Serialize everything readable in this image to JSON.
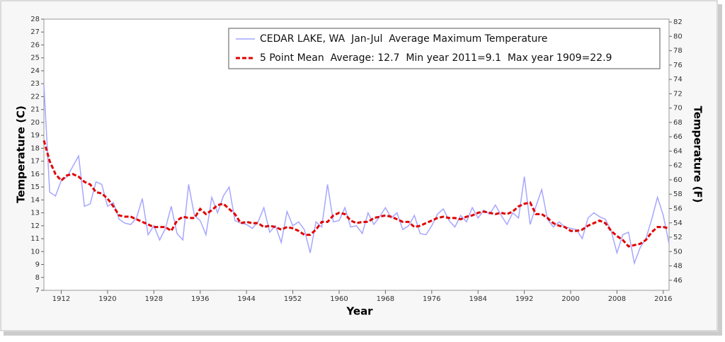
{
  "chart_data": {
    "type": "line",
    "legend_position": "upper right",
    "x_label": "Year",
    "y_label": "Temperature (C)",
    "y2_label": "Temperature (F)",
    "x": [
      1909,
      1910,
      1911,
      1912,
      1913,
      1914,
      1915,
      1916,
      1917,
      1918,
      1919,
      1920,
      1921,
      1922,
      1923,
      1924,
      1925,
      1926,
      1927,
      1928,
      1929,
      1930,
      1931,
      1932,
      1933,
      1934,
      1935,
      1936,
      1937,
      1938,
      1939,
      1940,
      1941,
      1942,
      1943,
      1944,
      1945,
      1946,
      1947,
      1948,
      1949,
      1950,
      1951,
      1952,
      1953,
      1954,
      1955,
      1956,
      1957,
      1958,
      1959,
      1960,
      1961,
      1962,
      1963,
      1964,
      1965,
      1966,
      1967,
      1968,
      1969,
      1970,
      1971,
      1972,
      1973,
      1974,
      1975,
      1976,
      1977,
      1978,
      1979,
      1980,
      1981,
      1982,
      1983,
      1984,
      1985,
      1986,
      1987,
      1988,
      1989,
      1990,
      1991,
      1992,
      1993,
      1994,
      1995,
      1996,
      1997,
      1998,
      1999,
      2000,
      2001,
      2002,
      2003,
      2004,
      2005,
      2006,
      2007,
      2008,
      2009,
      2010,
      2011,
      2012,
      2013,
      2014,
      2015,
      2016,
      2017
    ],
    "series": [
      {
        "name": "CEDAR LAKE, WA  Jan-Jul  Average Maximum Temperature",
        "color": "#a6a6ff",
        "dashed": false,
        "values": [
          22.9,
          14.6,
          14.3,
          15.5,
          15.8,
          16.6,
          17.4,
          13.5,
          13.7,
          15.4,
          15.2,
          13.5,
          13.8,
          12.5,
          12.2,
          12.1,
          12.6,
          14.1,
          11.3,
          12.0,
          10.9,
          11.8,
          13.5,
          11.4,
          10.9,
          15.2,
          12.8,
          12.4,
          11.3,
          14.2,
          13.0,
          14.3,
          15.0,
          12.4,
          12.2,
          12.1,
          11.8,
          12.3,
          13.4,
          11.5,
          12.0,
          10.7,
          13.1,
          12.0,
          12.3,
          11.7,
          9.9,
          12.3,
          11.9,
          15.2,
          12.3,
          12.4,
          13.4,
          11.9,
          12.0,
          11.4,
          13.0,
          12.1,
          12.7,
          13.4,
          12.6,
          13.0,
          11.7,
          12.0,
          12.8,
          11.4,
          11.3,
          12.0,
          12.9,
          13.3,
          12.4,
          11.9,
          12.8,
          12.3,
          13.4,
          12.6,
          13.2,
          12.9,
          13.6,
          12.8,
          12.1,
          13.0,
          12.6,
          15.8,
          12.1,
          13.5,
          14.8,
          12.5,
          11.9,
          12.3,
          11.9,
          11.8,
          11.7,
          11.0,
          12.6,
          13.0,
          12.7,
          12.5,
          11.6,
          9.9,
          11.3,
          11.5,
          9.1,
          10.3,
          11.0,
          12.5,
          14.2,
          12.8,
          10.6
        ]
      },
      {
        "name": "5 Point Mean  Average: 12.7  Min year 2011=9.1  Max year 1909=22.9",
        "color": "#e00000",
        "dashed": true,
        "values": [
          18.6,
          17.0,
          16.0,
          15.5,
          15.9,
          16.0,
          15.8,
          15.4,
          15.2,
          14.6,
          14.5,
          14.1,
          13.5,
          12.8,
          12.7,
          12.7,
          12.5,
          12.3,
          12.1,
          11.9,
          11.9,
          11.9,
          11.6,
          12.4,
          12.7,
          12.6,
          12.6,
          13.3,
          12.9,
          13.2,
          13.6,
          13.7,
          13.3,
          12.9,
          12.2,
          12.3,
          12.2,
          12.2,
          11.9,
          12.0,
          11.9,
          11.7,
          11.9,
          11.8,
          11.6,
          11.3,
          11.3,
          11.7,
          12.3,
          12.3,
          12.8,
          13.0,
          12.9,
          12.4,
          12.2,
          12.3,
          12.3,
          12.6,
          12.7,
          12.8,
          12.7,
          12.5,
          12.3,
          12.3,
          11.9,
          12.0,
          12.2,
          12.4,
          12.6,
          12.7,
          12.6,
          12.6,
          12.5,
          12.7,
          12.8,
          13.0,
          13.1,
          13.0,
          12.9,
          13.0,
          12.9,
          13.1,
          13.5,
          13.7,
          13.8,
          12.9,
          12.9,
          12.6,
          12.2,
          12.0,
          11.9,
          11.6,
          11.6,
          11.7,
          12.0,
          12.2,
          12.4,
          12.2,
          11.6,
          11.2,
          10.9,
          10.4,
          10.5,
          10.6,
          10.9,
          11.5,
          11.9,
          11.9,
          11.8
        ]
      }
    ],
    "xlim": [
      1909,
      2017
    ],
    "xticks": [
      1912,
      1920,
      1928,
      1936,
      1944,
      1952,
      1960,
      1968,
      1976,
      1984,
      1992,
      2000,
      2008,
      2016
    ],
    "ylim": [
      7,
      28
    ],
    "yticks": [
      7,
      8,
      9,
      10,
      11,
      12,
      13,
      14,
      15,
      16,
      17,
      18,
      19,
      20,
      21,
      22,
      23,
      24,
      25,
      26,
      27,
      28
    ],
    "y2lim": [
      44.6,
      82.4
    ],
    "y2ticks": [
      46,
      48,
      50,
      52,
      54,
      56,
      58,
      60,
      62,
      64,
      66,
      68,
      70,
      72,
      74,
      76,
      78,
      80,
      82
    ]
  }
}
